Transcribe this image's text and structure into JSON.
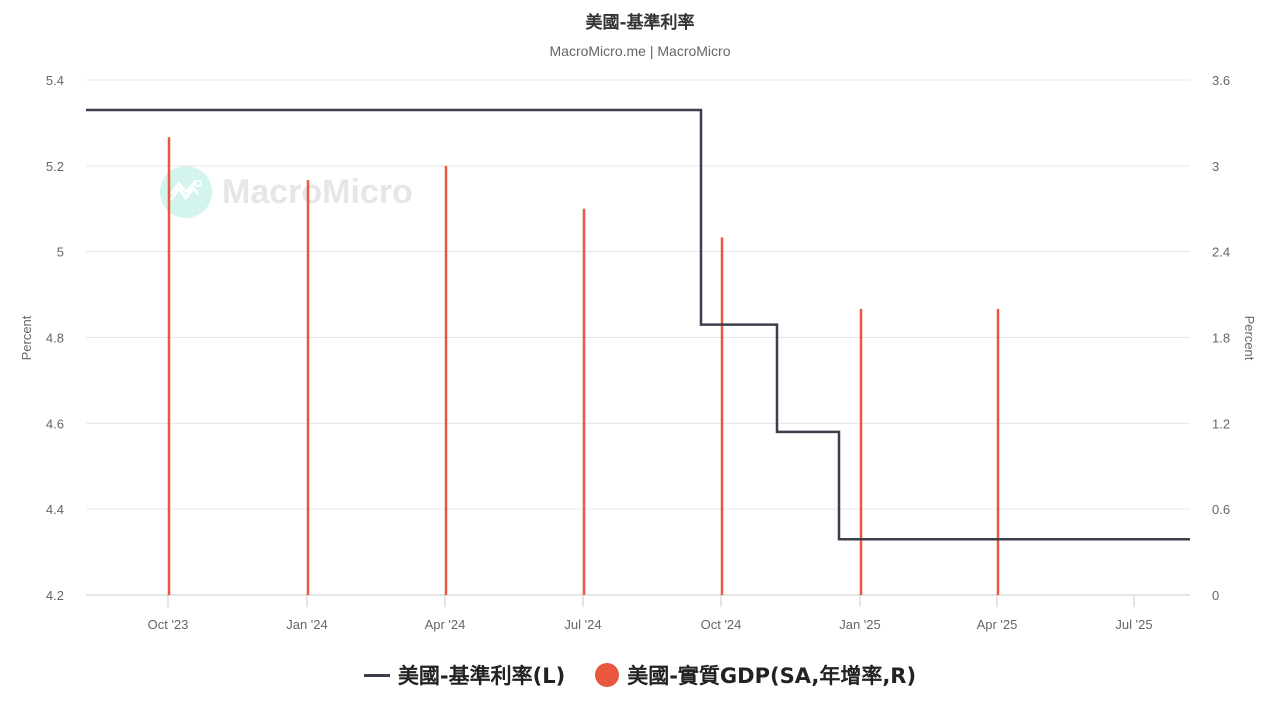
{
  "header": {
    "title": "美國-基準利率",
    "subtitle": "MacroMicro.me | MacroMicro"
  },
  "watermark": {
    "icon": "macromicro-logo-icon",
    "text": "MacroMicro"
  },
  "legend": {
    "items": [
      {
        "label": "美國-基準利率(L)",
        "marker": "line",
        "color": "#3b3f4d"
      },
      {
        "label": "美國-實質GDP(SA,年增率,R)",
        "marker": "circle",
        "color": "#e8573e"
      }
    ]
  },
  "axes": {
    "left_title": "Percent",
    "right_title": "Percent",
    "left_ticks": [
      "5.4",
      "5.2",
      "5",
      "4.8",
      "4.6",
      "4.4",
      "4.2"
    ],
    "right_ticks": [
      "3.6",
      "3",
      "2.4",
      "1.8",
      "1.2",
      "0.6",
      "0"
    ],
    "x_ticks": [
      "Oct '23",
      "Jan '24",
      "Apr '24",
      "Jul '24",
      "Oct '24",
      "Jan '25",
      "Apr '25",
      "Jul '25"
    ]
  },
  "chart_data": {
    "type": "line",
    "title": "美國-基準利率",
    "subtitle": "MacroMicro.me | MacroMicro",
    "xlabel": "",
    "ylabel": "Percent",
    "y2label": "Percent",
    "ylim": [
      4.2,
      5.4
    ],
    "y2lim": [
      0,
      3.6
    ],
    "x_tick_labels": [
      "Oct '23",
      "Jan '24",
      "Apr '24",
      "Jul '24",
      "Oct '24",
      "Jan '25",
      "Apr '25",
      "Jul '25"
    ],
    "grid": true,
    "legend_position": "bottom",
    "series": [
      {
        "name": "美國-基準利率(L)",
        "type": "step-line",
        "axis": "left",
        "color": "#3b3f4d",
        "points": [
          {
            "x": "2023-08",
            "y": 5.33
          },
          {
            "x": "2024-09-18",
            "y": 4.83
          },
          {
            "x": "2024-11-07",
            "y": 4.58
          },
          {
            "x": "2024-12-18",
            "y": 4.33
          },
          {
            "x": "2025-08",
            "y": 4.33
          }
        ]
      },
      {
        "name": "美國-實質GDP(SA,年增率,R)",
        "type": "bar",
        "axis": "right",
        "color": "#e8573e",
        "categories": [
          "Oct '23",
          "Jan '24",
          "Apr '24",
          "Jul '24",
          "Oct '24",
          "Jan '25",
          "Apr '25"
        ],
        "values": [
          3.2,
          2.9,
          3.0,
          2.7,
          2.5,
          2.0,
          2.0
        ]
      }
    ]
  }
}
